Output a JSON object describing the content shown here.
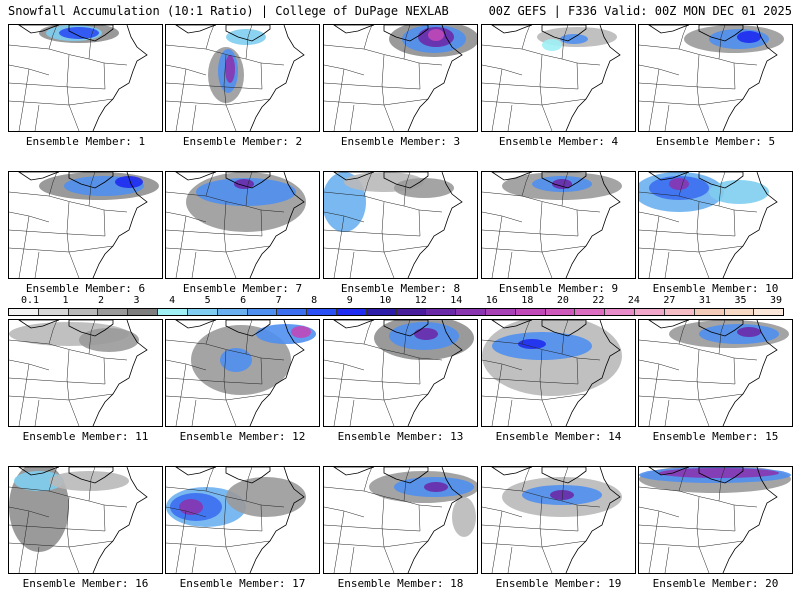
{
  "header": {
    "left": "Snowfall Accumulation (10:1 Ratio) | College of DuPage NEXLAB",
    "right": "00Z GEFS | F336 Valid: 00Z MON DEC 01 2025"
  },
  "legend": {
    "labels": [
      "0.1",
      "1",
      "2",
      "3",
      "4",
      "5",
      "6",
      "7",
      "8",
      "9",
      "10",
      "12",
      "14",
      "16",
      "18",
      "20",
      "22",
      "24",
      "27",
      "31",
      "35",
      "39"
    ],
    "colors": [
      "#f2f2f2",
      "#d6d6d6",
      "#b9b9b9",
      "#9a9a9a",
      "#7e7e7e",
      "#9ff0f5",
      "#7fcdf0",
      "#6ab0f0",
      "#4f8ff0",
      "#3b6ff0",
      "#2a4ff5",
      "#1f2bf0",
      "#2d1ca8",
      "#4a1d9c",
      "#6a2aa8",
      "#8a35b0",
      "#a741b5",
      "#c048b8",
      "#cf58bc",
      "#dc6ec2",
      "#e88bc9",
      "#f0a7c9",
      "#f6bcc6",
      "#f3c9b8",
      "#f7d8c4",
      "#fbe7d9"
    ]
  },
  "panels": [
    {
      "label": "Ensemble Member: 1"
    },
    {
      "label": "Ensemble Member: 2"
    },
    {
      "label": "Ensemble Member: 3"
    },
    {
      "label": "Ensemble Member: 4"
    },
    {
      "label": "Ensemble Member: 5"
    },
    {
      "label": "Ensemble Member: 6"
    },
    {
      "label": "Ensemble Member: 7"
    },
    {
      "label": "Ensemble Member: 8"
    },
    {
      "label": "Ensemble Member: 9"
    },
    {
      "label": "Ensemble Member: 10"
    },
    {
      "label": "Ensemble Member: 11"
    },
    {
      "label": "Ensemble Member: 12"
    },
    {
      "label": "Ensemble Member: 13"
    },
    {
      "label": "Ensemble Member: 14"
    },
    {
      "label": "Ensemble Member: 15"
    },
    {
      "label": "Ensemble Member: 16"
    },
    {
      "label": "Ensemble Member: 17"
    },
    {
      "label": "Ensemble Member: 18"
    },
    {
      "label": "Ensemble Member: 19"
    },
    {
      "label": "Ensemble Member: 20"
    }
  ]
}
